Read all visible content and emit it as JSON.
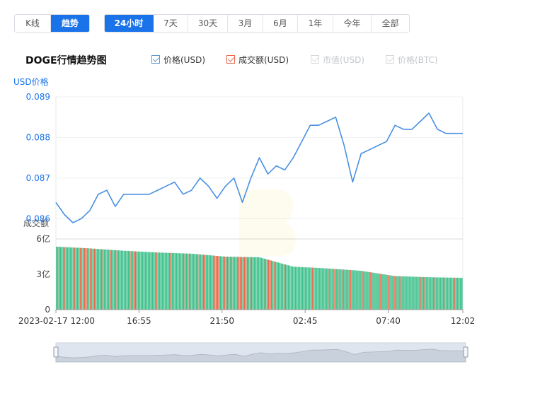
{
  "range_tabs_left": [
    {
      "label": "K线",
      "active": false
    },
    {
      "label": "趋势",
      "active": true
    }
  ],
  "range_tabs_right": [
    {
      "label": "24小时",
      "active": true
    },
    {
      "label": "7天",
      "active": false
    },
    {
      "label": "30天",
      "active": false
    },
    {
      "label": "3月",
      "active": false
    },
    {
      "label": "6月",
      "active": false
    },
    {
      "label": "1年",
      "active": false
    },
    {
      "label": "今年",
      "active": false
    },
    {
      "label": "全部",
      "active": false
    }
  ],
  "chart_title": "DOGE行情趋势图",
  "legend": [
    {
      "label": "价格(USD)",
      "checked": true,
      "enabled": true,
      "color": "#5b9bd5"
    },
    {
      "label": "成交额(USD)",
      "checked": true,
      "enabled": true,
      "color": "#e8684a"
    },
    {
      "label": "市值(USD)",
      "checked": true,
      "enabled": false,
      "color": "#cfd3d8"
    },
    {
      "label": "价格(BTC)",
      "checked": true,
      "enabled": false,
      "color": "#cfd3d8"
    }
  ],
  "colors": {
    "price_line": "#4a90e2",
    "volume_up": "#3cc08a",
    "volume_down": "#e8684a",
    "axis_label_blue": "#1a73e8"
  },
  "chart_data": {
    "type": "line",
    "price_axis_title": "USD价格",
    "volume_axis_title": "成交额",
    "price_ticks": [
      "0.089",
      "0.088",
      "0.087",
      "0.086"
    ],
    "price_ylim": [
      0.0855,
      0.089
    ],
    "volume_ticks": [
      "6亿",
      "3亿",
      "0"
    ],
    "volume_ylim_yi": [
      0,
      6
    ],
    "x_tick_labels": [
      "2023-02-17 12:00",
      "16:55",
      "21:50",
      "02:45",
      "07:40",
      "12:02"
    ],
    "price_series": {
      "name": "价格(USD)",
      "x_hours": [
        0,
        0.5,
        1,
        1.5,
        2,
        2.5,
        3,
        3.5,
        4,
        4.5,
        5,
        5.5,
        6,
        6.5,
        7,
        7.5,
        8,
        8.5,
        9,
        9.5,
        10,
        10.5,
        11,
        11.5,
        12,
        12.5,
        13,
        13.5,
        14,
        14.5,
        15,
        15.5,
        16,
        16.5,
        17,
        17.5,
        18,
        18.5,
        19,
        19.5,
        20,
        20.5,
        21,
        21.5,
        22,
        22.5,
        23,
        23.5,
        24
      ],
      "values": [
        0.0864,
        0.0861,
        0.0859,
        0.086,
        0.0862,
        0.0866,
        0.0867,
        0.0863,
        0.0866,
        0.0866,
        0.0866,
        0.0866,
        0.0867,
        0.0868,
        0.0869,
        0.0866,
        0.0867,
        0.087,
        0.0868,
        0.0865,
        0.0868,
        0.087,
        0.0864,
        0.087,
        0.0875,
        0.0871,
        0.0873,
        0.0872,
        0.0875,
        0.0879,
        0.0883,
        0.0883,
        0.0884,
        0.0885,
        0.0878,
        0.0869,
        0.0876,
        0.0877,
        0.0878,
        0.0879,
        0.0883,
        0.0882,
        0.0882,
        0.0884,
        0.0886,
        0.0882,
        0.0881,
        0.0881,
        0.0881
      ]
    },
    "volume_series": {
      "name": "成交额(USD)",
      "unit": "亿",
      "x_hours": [
        0,
        2,
        4,
        6,
        8,
        10,
        12,
        14,
        16,
        18,
        20,
        22,
        24
      ],
      "values": [
        5.35,
        5.2,
        5.0,
        4.85,
        4.75,
        4.5,
        4.45,
        3.65,
        3.5,
        3.3,
        2.85,
        2.75,
        2.7
      ]
    }
  }
}
